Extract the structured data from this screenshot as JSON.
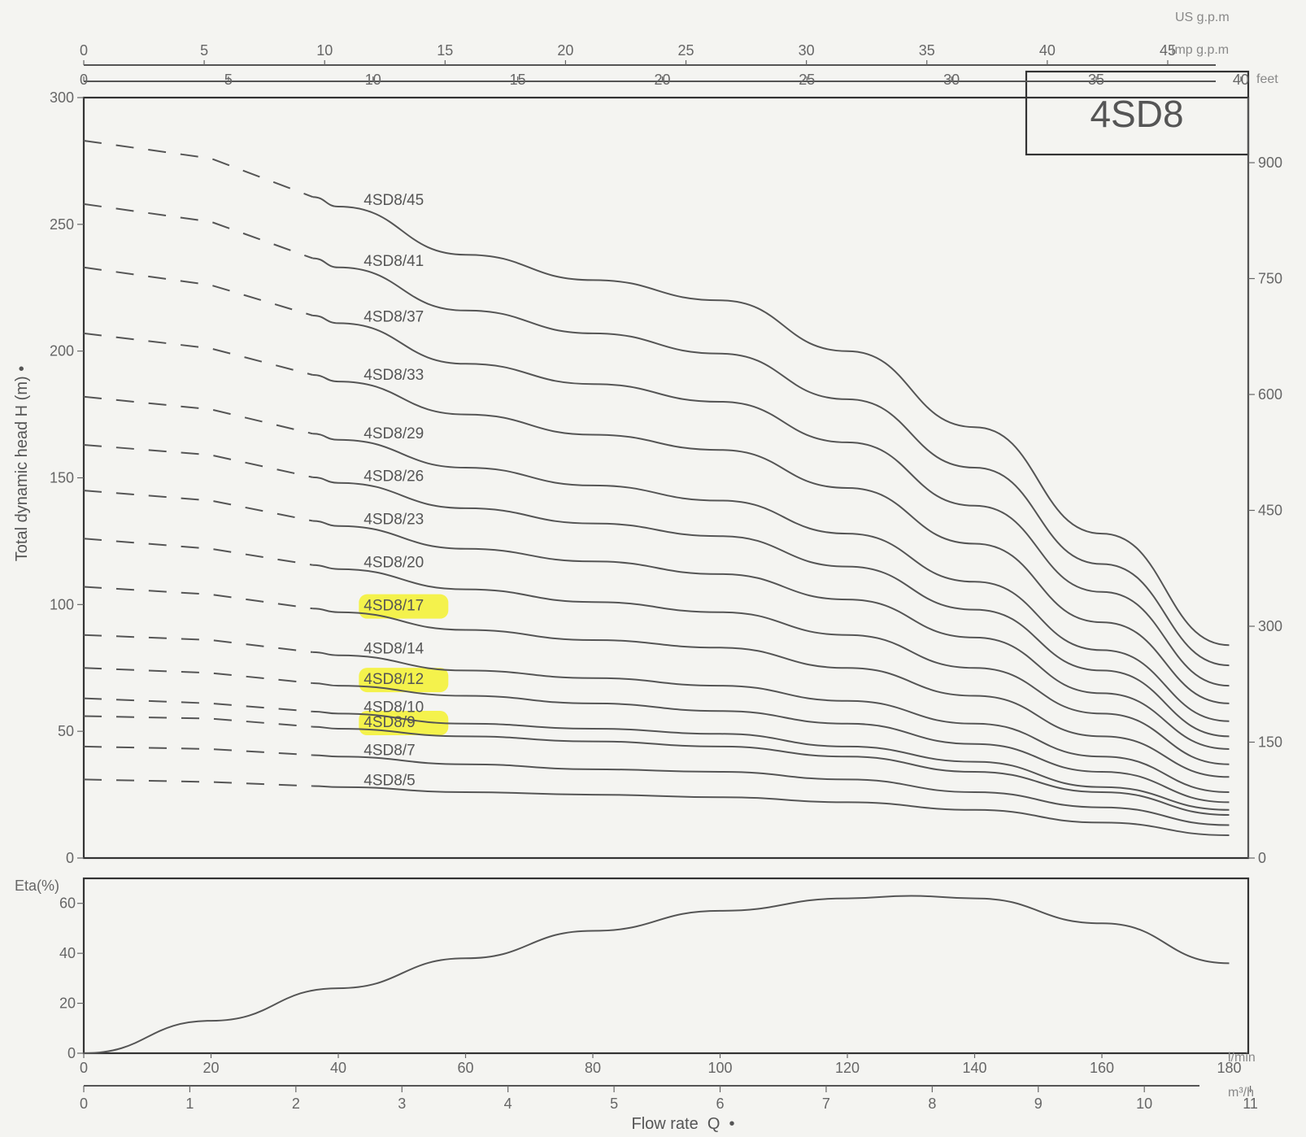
{
  "chart_data": [
    {
      "type": "line",
      "title": "4SD8",
      "ylabel": "Total dynamic head H (m) •",
      "ylim": [
        0,
        300
      ],
      "yticks": [
        "0",
        "50",
        "100",
        "150",
        "200",
        "250",
        "300"
      ],
      "y2label": "feet",
      "y2ticks": [
        "0",
        "150",
        "300",
        "450",
        "600",
        "750",
        "900"
      ],
      "top_axes": [
        {
          "unit": "US g.p.m",
          "ticks": [
            "0",
            "5",
            "10",
            "15",
            "20",
            "25",
            "30",
            "35",
            "40",
            "45"
          ]
        },
        {
          "unit": "Imp g.p.m",
          "ticks": [
            "0",
            "5",
            "10",
            "15",
            "20",
            "25",
            "30",
            "35",
            "40"
          ]
        }
      ],
      "x_unit": "l/min",
      "x": [
        0,
        20,
        40,
        60,
        80,
        100,
        120,
        140,
        160,
        180
      ],
      "dashed_until_x": 36,
      "series": [
        {
          "name": "4SD8/45",
          "highlight": false,
          "values": [
            283,
            276,
            257,
            238,
            228,
            220,
            200,
            170,
            128,
            84
          ]
        },
        {
          "name": "4SD8/41",
          "highlight": false,
          "values": [
            258,
            251,
            233,
            216,
            207,
            199,
            181,
            154,
            116,
            76
          ]
        },
        {
          "name": "4SD8/37",
          "highlight": false,
          "values": [
            233,
            226,
            211,
            195,
            187,
            180,
            164,
            139,
            105,
            68
          ]
        },
        {
          "name": "4SD8/33",
          "highlight": false,
          "values": [
            207,
            201,
            188,
            175,
            167,
            161,
            146,
            124,
            93,
            61
          ]
        },
        {
          "name": "4SD8/29",
          "highlight": false,
          "values": [
            182,
            177,
            165,
            154,
            147,
            141,
            128,
            109,
            82,
            54
          ]
        },
        {
          "name": "4SD8/26",
          "highlight": false,
          "values": [
            163,
            159,
            148,
            138,
            132,
            127,
            115,
            98,
            74,
            48
          ]
        },
        {
          "name": "4SD8/23",
          "highlight": false,
          "values": [
            145,
            141,
            131,
            122,
            117,
            112,
            102,
            87,
            65,
            43
          ]
        },
        {
          "name": "4SD8/20",
          "highlight": false,
          "values": [
            126,
            122,
            114,
            106,
            101,
            97,
            88,
            75,
            57,
            37
          ]
        },
        {
          "name": "4SD8/17",
          "highlight": true,
          "values": [
            107,
            104,
            97,
            90,
            86,
            83,
            75,
            64,
            48,
            32
          ]
        },
        {
          "name": "4SD8/14",
          "highlight": false,
          "values": [
            88,
            86,
            80,
            74,
            71,
            68,
            62,
            53,
            40,
            26
          ]
        },
        {
          "name": "4SD8/12",
          "highlight": true,
          "values": [
            75,
            73,
            68,
            64,
            61,
            58,
            53,
            45,
            34,
            22
          ]
        },
        {
          "name": "4SD8/10",
          "highlight": false,
          "values": [
            63,
            61,
            57,
            53,
            51,
            49,
            44,
            38,
            28,
            19
          ]
        },
        {
          "name": "4SD8/9",
          "highlight": true,
          "values": [
            56,
            55,
            51,
            48,
            46,
            44,
            40,
            34,
            26,
            17
          ]
        },
        {
          "name": "4SD8/7",
          "highlight": false,
          "values": [
            44,
            43,
            40,
            37,
            35,
            34,
            31,
            26,
            20,
            13
          ]
        },
        {
          "name": "4SD8/5",
          "highlight": false,
          "values": [
            31,
            30,
            28,
            26,
            25,
            24,
            22,
            19,
            14,
            9
          ]
        }
      ]
    },
    {
      "type": "line",
      "ylabel": "Eta(%)",
      "ylim": [
        0,
        70
      ],
      "yticks": [
        "0",
        "20",
        "40",
        "60"
      ],
      "x_unit": "l/min",
      "xticks": [
        "0",
        "20",
        "40",
        "60",
        "80",
        "100",
        "120",
        "140",
        "160",
        "180"
      ],
      "x2_unit": "m³/h",
      "x2ticks": [
        "0",
        "1",
        "2",
        "3",
        "4",
        "5",
        "6",
        "7",
        "8",
        "9",
        "10",
        "11"
      ],
      "xlabel": "Flow rate  Q  •",
      "x": [
        0,
        20,
        40,
        60,
        80,
        100,
        120,
        130,
        140,
        160,
        180
      ],
      "values": [
        0,
        13,
        26,
        38,
        49,
        57,
        62,
        63,
        62,
        52,
        36
      ]
    }
  ]
}
